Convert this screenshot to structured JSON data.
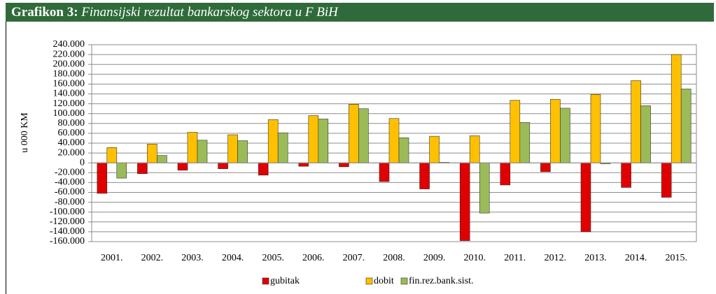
{
  "chart_data": {
    "type": "bar",
    "label": "Grafikon 3:",
    "title": "Finansijski rezultat bankarskog sektora u  F BiH",
    "ylabel": "u 000  KM",
    "categories": [
      "2001.",
      "2002.",
      "2003.",
      "2004.",
      "2005.",
      "2006.",
      "2007.",
      "2008.",
      "2009.",
      "2010.",
      "2011.",
      "2012.",
      "2013.",
      "2014.",
      "2015."
    ],
    "series": [
      {
        "name": "gubitak",
        "color": "#e00000",
        "values": [
          -62000,
          -22000,
          -15000,
          -12000,
          -25000,
          -7000,
          -8000,
          -38000,
          -53000,
          -158000,
          -45000,
          -18000,
          -140000,
          -50000,
          -70000
        ]
      },
      {
        "name": "dobit",
        "color": "#ffc000",
        "values": [
          31000,
          38000,
          62000,
          57000,
          88000,
          96000,
          119000,
          90000,
          54000,
          55000,
          127000,
          129000,
          139000,
          167000,
          220000
        ]
      },
      {
        "name": "fin.rez.bank.sist.",
        "color": "#9bbb59",
        "values": [
          -31000,
          15000,
          46000,
          45000,
          61000,
          89000,
          110000,
          51000,
          1000,
          -102000,
          82000,
          111000,
          -2000,
          116000,
          150000
        ]
      }
    ],
    "ylim": [
      -160000,
      240000
    ],
    "yticks": [
      {
        "value": -160000,
        "label": "-160.000"
      },
      {
        "value": -140000,
        "label": "-140.000"
      },
      {
        "value": -120000,
        "label": "-120.000"
      },
      {
        "value": -100000,
        "label": "-100.000"
      },
      {
        "value": -80000,
        "label": "-80.000"
      },
      {
        "value": -60000,
        "label": "-60.000"
      },
      {
        "value": -40000,
        "label": "-40.000"
      },
      {
        "value": -20000,
        "label": "-20.000"
      },
      0,
      {
        "value": 20000,
        "label": "20.000"
      },
      {
        "value": 40000,
        "label": "40.000"
      },
      {
        "value": 60000,
        "label": "60.000"
      },
      {
        "value": 80000,
        "label": "80.000"
      },
      {
        "value": 100000,
        "label": "100.000"
      },
      {
        "value": 120000,
        "label": "120.000"
      },
      {
        "value": 140000,
        "label": "140.000"
      },
      {
        "value": 160000,
        "label": "160.000"
      },
      {
        "value": 180000,
        "label": "180.000"
      },
      {
        "value": 200000,
        "label": "200.000"
      },
      {
        "value": 220000,
        "label": "220.000"
      },
      {
        "value": 240000,
        "label": "240.000"
      }
    ],
    "grid": true,
    "legend": "bottom"
  }
}
